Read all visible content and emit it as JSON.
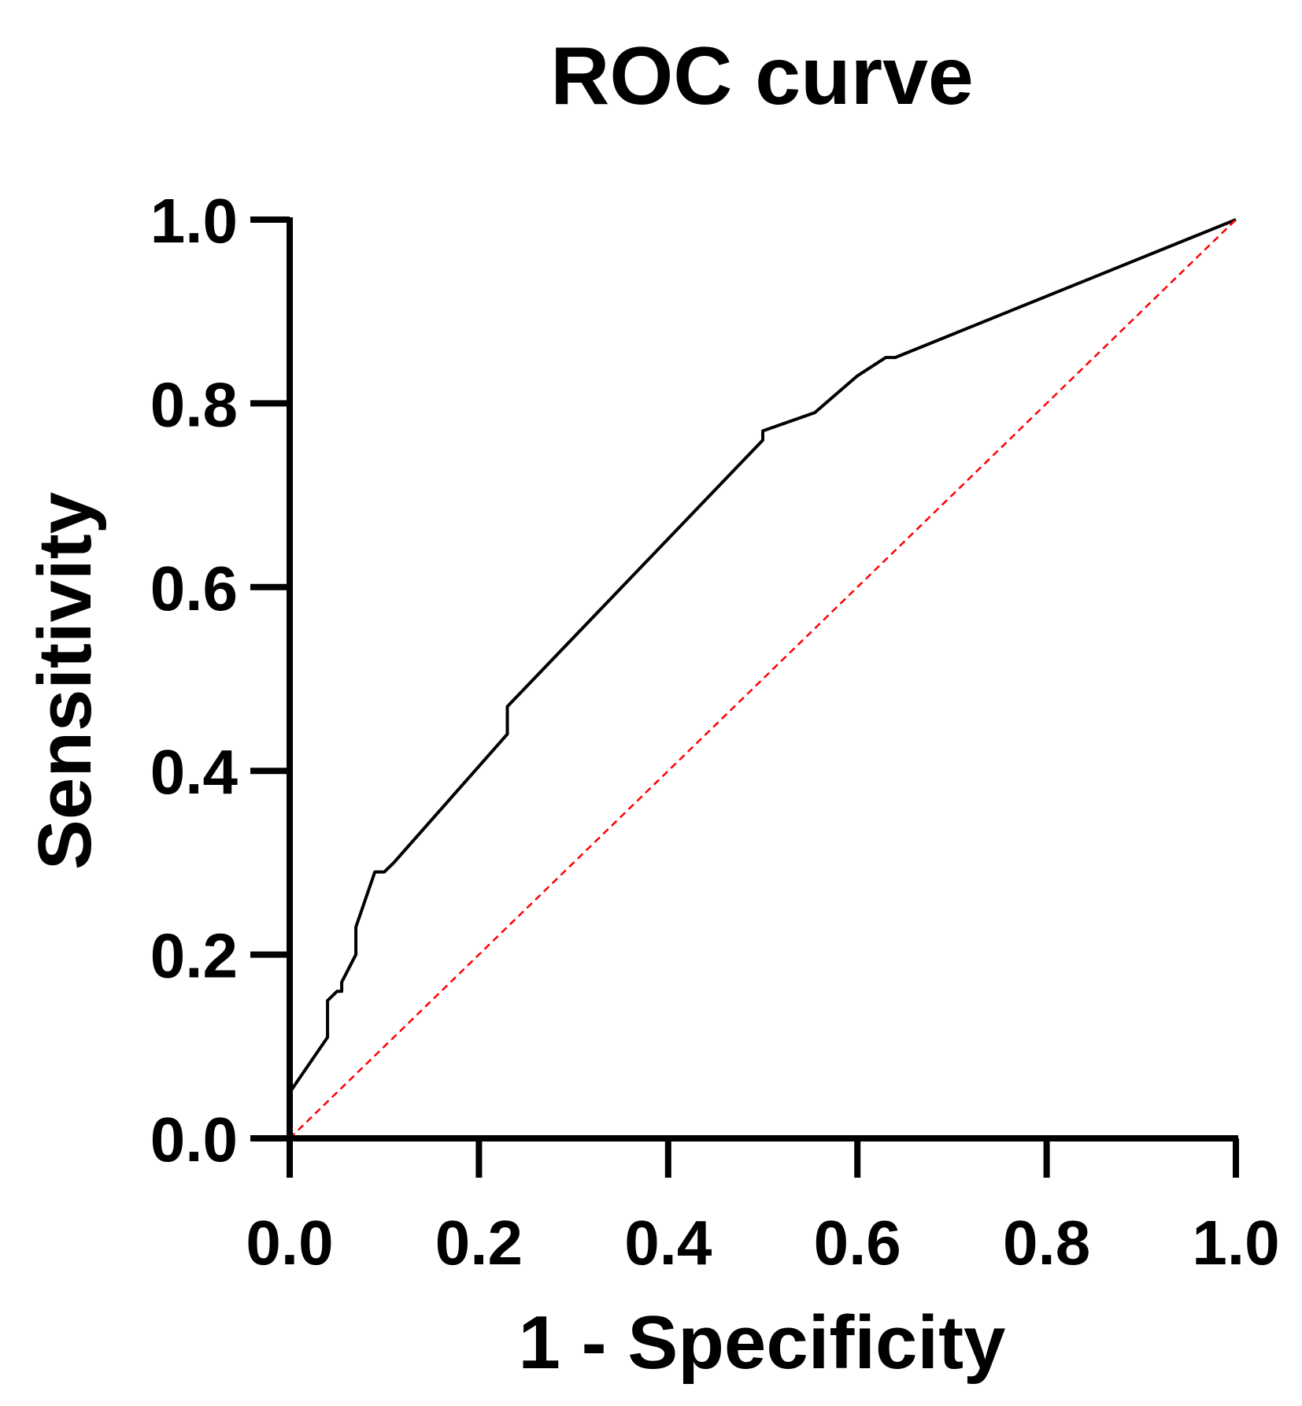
{
  "chart_data": {
    "type": "line",
    "title": "ROC curve",
    "xlabel": "1 - Specificity",
    "ylabel": "Sensitivity",
    "xlim": [
      0,
      1
    ],
    "ylim": [
      0,
      1
    ],
    "x_ticks": [
      0.0,
      0.2,
      0.4,
      0.6,
      0.8,
      1.0
    ],
    "y_ticks": [
      0.0,
      0.2,
      0.4,
      0.6,
      0.8,
      1.0
    ],
    "x_tick_labels": [
      "0.0",
      "0.2",
      "0.4",
      "0.6",
      "0.8",
      "1.0"
    ],
    "y_tick_labels": [
      "0.0",
      "0.2",
      "0.4",
      "0.6",
      "0.8",
      "1.0"
    ],
    "grid": false,
    "legend": "none",
    "series": [
      {
        "name": "ROC",
        "color": "#000000",
        "style": "solid",
        "x": [
          0.0,
          0.0,
          0.04,
          0.04,
          0.05,
          0.055,
          0.055,
          0.07,
          0.07,
          0.09,
          0.1,
          0.11,
          0.23,
          0.23,
          0.5,
          0.5,
          0.555,
          0.6,
          0.63,
          0.64,
          1.0
        ],
        "y": [
          0.0,
          0.05,
          0.11,
          0.15,
          0.16,
          0.16,
          0.17,
          0.2,
          0.23,
          0.29,
          0.29,
          0.3,
          0.44,
          0.47,
          0.76,
          0.77,
          0.79,
          0.83,
          0.85,
          0.85,
          1.0
        ]
      },
      {
        "name": "Reference line",
        "color": "#ff0000",
        "style": "dashed",
        "x": [
          0.0,
          1.0
        ],
        "y": [
          0.0,
          1.0
        ]
      }
    ]
  }
}
